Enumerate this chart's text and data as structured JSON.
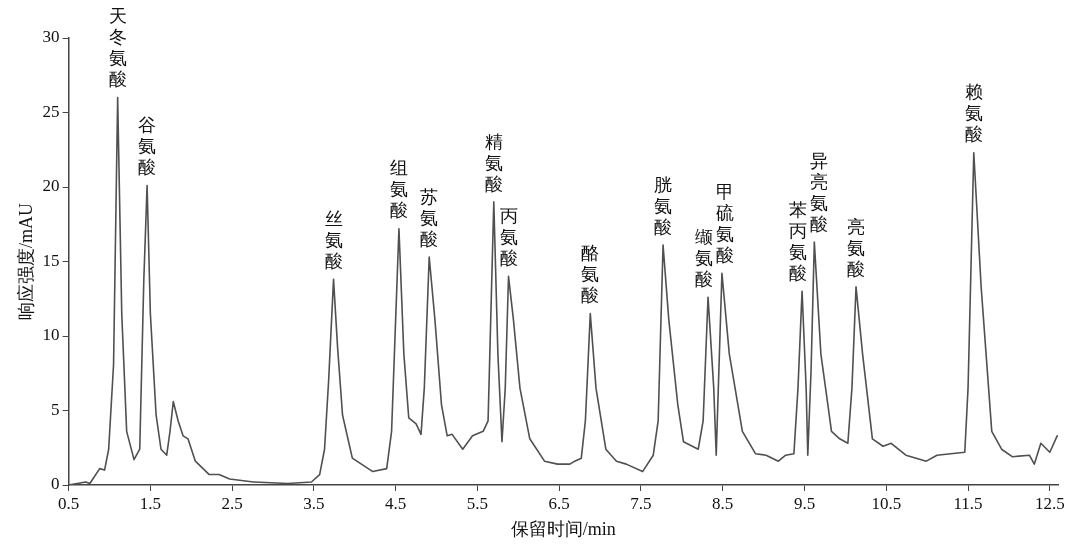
{
  "chart_data": {
    "type": "line",
    "xlabel": "保留时间/min",
    "ylabel": "响应强度/mAU",
    "xlim": [
      0.5,
      12.6
    ],
    "xticks": [
      0.5,
      1.5,
      2.5,
      3.5,
      4.5,
      5.5,
      6.5,
      7.5,
      8.5,
      9.5,
      10.5,
      11.5,
      12.5
    ],
    "ylim": [
      0,
      30
    ],
    "yticks": [
      0,
      5,
      10,
      15,
      20,
      25,
      30
    ],
    "grid": false,
    "legend": false,
    "marker": "none",
    "line_style": "solid",
    "series": [
      {
        "color": "#505050",
        "x": [
          0.5,
          0.71,
          0.76,
          0.88,
          0.94,
          0.99,
          1.05,
          1.1,
          1.15,
          1.21,
          1.3,
          1.37,
          1.42,
          1.46,
          1.5,
          1.57,
          1.63,
          1.7,
          1.74,
          1.78,
          1.84,
          1.9,
          1.96,
          2.05,
          2.22,
          2.34,
          2.47,
          2.76,
          3.18,
          3.47,
          3.57,
          3.63,
          3.68,
          3.74,
          3.79,
          3.85,
          3.97,
          4.22,
          4.39,
          4.45,
          4.54,
          4.6,
          4.66,
          4.75,
          4.81,
          4.85,
          4.91,
          4.98,
          5.06,
          5.13,
          5.19,
          5.32,
          5.44,
          5.57,
          5.63,
          5.7,
          5.75,
          5.8,
          5.84,
          5.88,
          5.94,
          6.02,
          6.14,
          6.32,
          6.48,
          6.63,
          6.69,
          6.77,
          6.82,
          6.88,
          6.95,
          7.07,
          7.2,
          7.32,
          7.52,
          7.65,
          7.71,
          7.77,
          7.84,
          7.95,
          8.02,
          8.2,
          8.26,
          8.32,
          8.39,
          8.42,
          8.49,
          8.58,
          8.74,
          8.9,
          9.03,
          9.18,
          9.27,
          9.37,
          9.42,
          9.47,
          9.52,
          9.54,
          9.58,
          9.62,
          9.7,
          9.83,
          9.93,
          10.03,
          10.08,
          10.13,
          10.21,
          10.33,
          10.46,
          10.56,
          10.74,
          10.99,
          11.12,
          11.46,
          11.5,
          11.57,
          11.66,
          11.79,
          11.91,
          12.04,
          12.25,
          12.31,
          12.39,
          12.5,
          12.59
        ],
        "values": [
          0,
          0.2,
          0.1,
          1.1,
          1,
          2.4,
          8.1,
          26,
          11.5,
          3.6,
          1.7,
          2.4,
          13.8,
          20.1,
          11.5,
          4.7,
          2.4,
          2,
          3.6,
          5.6,
          4.3,
          3.3,
          3.1,
          1.6,
          0.7,
          0.7,
          0.4,
          0.2,
          0.1,
          0.2,
          0.7,
          2.4,
          7,
          13.8,
          9.2,
          4.7,
          1.8,
          0.9,
          1.1,
          3.6,
          17.2,
          8.8,
          4.5,
          4.1,
          3.4,
          6.5,
          15.3,
          11.1,
          5.4,
          3.3,
          3.4,
          2.4,
          3.3,
          3.6,
          4.3,
          19,
          8.8,
          2.9,
          6.5,
          14,
          11.1,
          6.5,
          3.1,
          1.6,
          1.4,
          1.4,
          1.6,
          1.8,
          4.3,
          11.5,
          6.5,
          2.4,
          1.6,
          1.4,
          0.9,
          2,
          4.3,
          16.1,
          11.1,
          5.4,
          2.9,
          2.4,
          4.3,
          12.6,
          6.5,
          2,
          14.2,
          8.8,
          3.6,
          2.1,
          2,
          1.6,
          2,
          2.1,
          6.5,
          13,
          6.5,
          2,
          7.7,
          16.3,
          8.8,
          3.6,
          3.1,
          2.8,
          6.5,
          13.3,
          8.8,
          3.1,
          2.6,
          2.8,
          2,
          1.6,
          2,
          2.2,
          6.5,
          22.3,
          13.3,
          3.6,
          2.4,
          1.9,
          2,
          1.4,
          2.8,
          2.2,
          3.3
        ]
      }
    ],
    "annotations": [
      {
        "text": "天冬氨酸",
        "x": 1.1,
        "y": 26
      },
      {
        "text": "谷氨酸",
        "x": 1.46,
        "y": 20.1
      },
      {
        "text": "丝氨酸",
        "x": 3.74,
        "y": 13.8
      },
      {
        "text": "组氨酸",
        "x": 4.54,
        "y": 17.2
      },
      {
        "text": "苏氨酸",
        "x": 4.91,
        "y": 15.3
      },
      {
        "text": "精氨酸",
        "x": 5.7,
        "y": 19
      },
      {
        "text": "丙氨酸",
        "x": 5.88,
        "y": 14
      },
      {
        "text": "酪氨酸",
        "x": 6.88,
        "y": 11.5
      },
      {
        "text": "胱氨酸",
        "x": 7.77,
        "y": 16.1
      },
      {
        "text": "缬氨酸",
        "x": 8.32,
        "y": 12.6
      },
      {
        "text": "甲硫氨酸",
        "x": 8.49,
        "y": 14.2
      },
      {
        "text": "苯丙氨酸",
        "x": 9.47,
        "y": 13
      },
      {
        "text": "异亮氨酸",
        "x": 9.62,
        "y": 16.3
      },
      {
        "text": "亮氨酸",
        "x": 10.13,
        "y": 13.3
      },
      {
        "text": "赖氨酸",
        "x": 11.57,
        "y": 22.3
      }
    ]
  }
}
